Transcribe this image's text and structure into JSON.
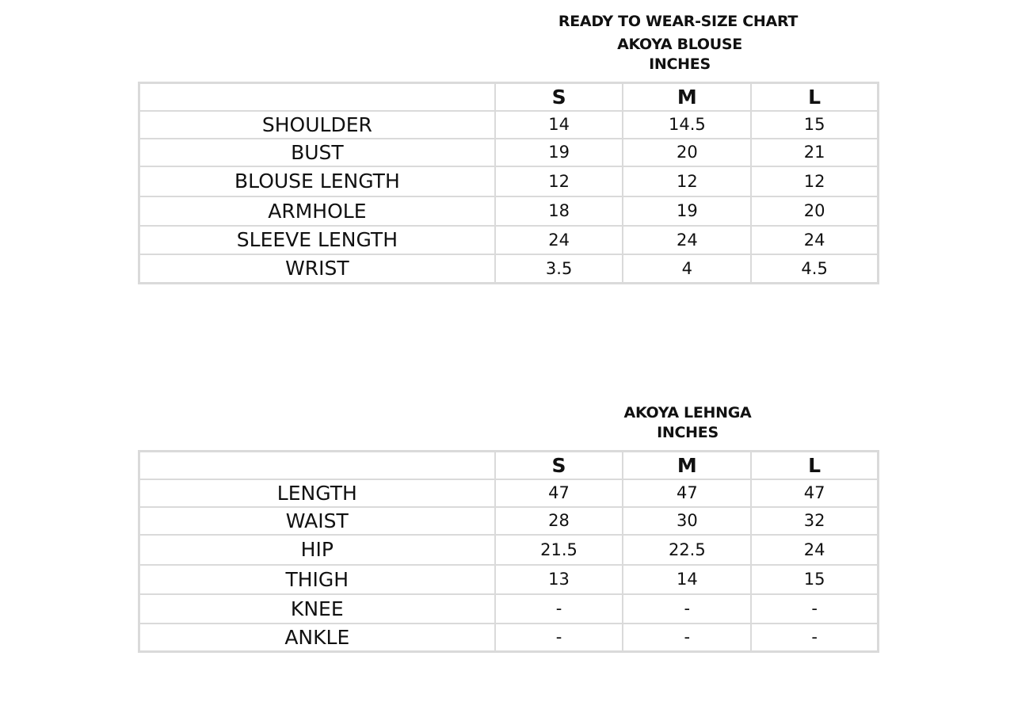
{
  "header": {
    "title": "READY TO WEAR-SIZE CHART"
  },
  "tables": [
    {
      "title": "AKOYA BLOUSE",
      "unit": "INCHES",
      "sizes": [
        "S",
        "M",
        "L"
      ],
      "rows": [
        {
          "label": "SHOULDER",
          "values": [
            "14",
            "14.5",
            "15"
          ]
        },
        {
          "label": "BUST",
          "values": [
            "19",
            "20",
            "21"
          ]
        },
        {
          "label": "BLOUSE LENGTH",
          "values": [
            "12",
            "12",
            "12"
          ]
        },
        {
          "label": "ARMHOLE",
          "values": [
            "18",
            "19",
            "20"
          ]
        },
        {
          "label": "SLEEVE LENGTH",
          "values": [
            "24",
            "24",
            "24"
          ]
        },
        {
          "label": "WRIST",
          "values": [
            "3.5",
            "4",
            "4.5"
          ]
        }
      ]
    },
    {
      "title": "AKOYA LEHNGA",
      "unit": "INCHES",
      "sizes": [
        "S",
        "M",
        "L"
      ],
      "rows": [
        {
          "label": "LENGTH",
          "values": [
            "47",
            "47",
            "47"
          ]
        },
        {
          "label": "WAIST",
          "values": [
            "28",
            "30",
            "32"
          ]
        },
        {
          "label": "HIP",
          "values": [
            "21.5",
            "22.5",
            "24"
          ]
        },
        {
          "label": "THIGH",
          "values": [
            "13",
            "14",
            "15"
          ]
        },
        {
          "label": "KNEE",
          "values": [
            "-",
            "-",
            "-"
          ]
        },
        {
          "label": "ANKLE",
          "values": [
            "-",
            "-",
            "-"
          ]
        }
      ]
    }
  ]
}
